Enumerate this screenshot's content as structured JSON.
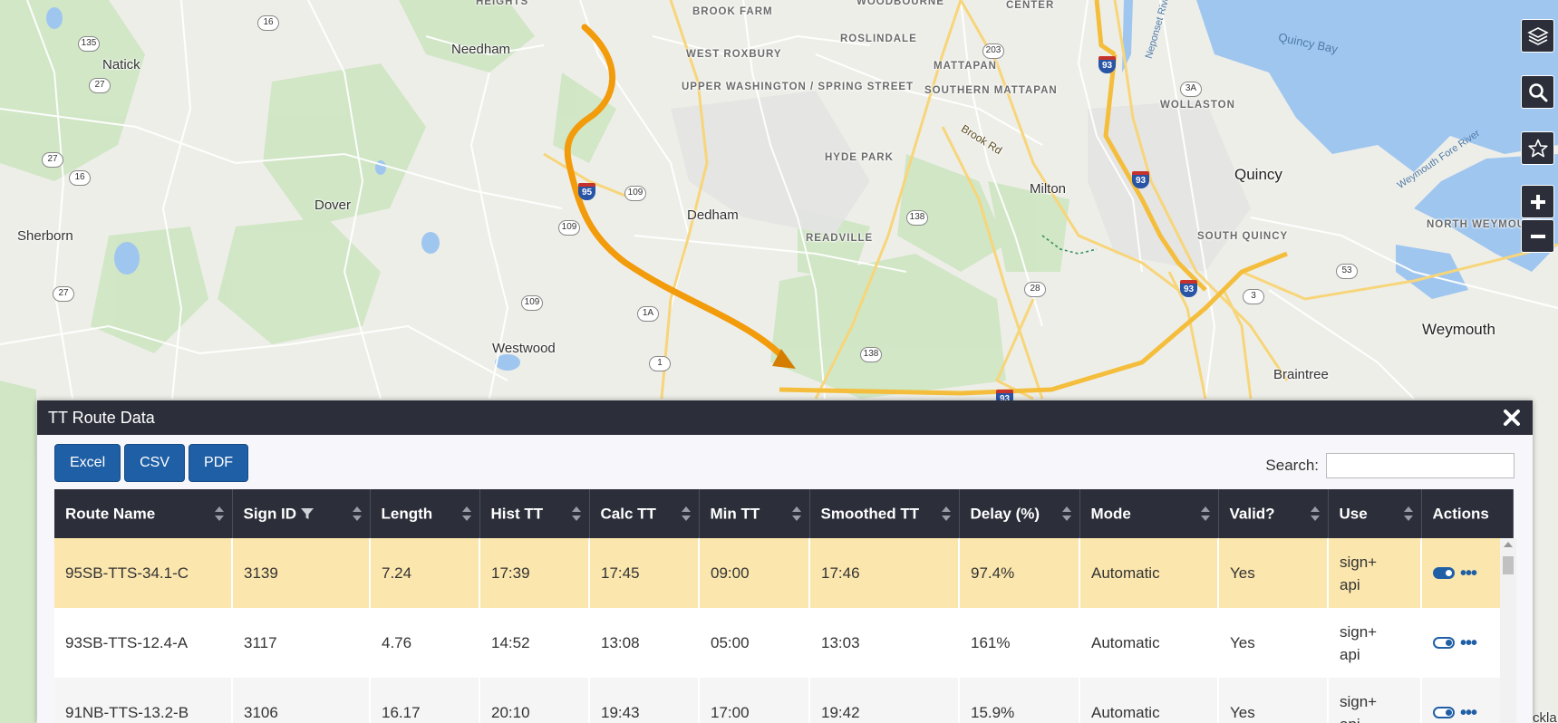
{
  "map": {
    "places": {
      "heights": "HEIGHTS",
      "brook_farm": "BROOK FARM",
      "woodbourne": "WOODBOURNE",
      "center": "CENTER",
      "needham": "Needham",
      "west_roxbury": "WEST ROXBURY",
      "roslindale": "ROSLINDALE",
      "mattapan": "MATTAPAN",
      "natick": "Natick",
      "upper_washington": "UPPER WASHINGTON / SPRING STREET",
      "southern_mattapan": "SOUTHERN MATTAPAN",
      "wollaston": "WOLLASTON",
      "quincy_bay": "Quincy Bay",
      "brook_rd": "Brook Rd",
      "hyde_park": "HYDE PARK",
      "milton": "Milton",
      "quincy": "Quincy",
      "dover": "Dover",
      "dedham": "Dedham",
      "sherborn": "Sherborn",
      "readville": "READVILLE",
      "south_quincy": "SOUTH QUINCY",
      "north_weymouth": "NORTH WEYMOUTH",
      "weymouth_fore_river": "Weymouth Fore River",
      "neponset_river": "Neponset River",
      "westwood": "Westwood",
      "weymouth": "Weymouth",
      "braintree": "Braintree"
    },
    "shields": {
      "r135": "135",
      "r16a": "16",
      "r27a": "27",
      "r27b": "27",
      "r16b": "16",
      "r27c": "27",
      "r203": "203",
      "r3a": "3A",
      "r109a": "109",
      "r109b": "109",
      "r109c": "109",
      "r138a": "138",
      "r138b": "138",
      "r1a": "1A",
      "r1": "1",
      "r28": "28",
      "r3": "3",
      "r53": "53"
    },
    "interstates": {
      "i95": "95",
      "i93a": "93",
      "i93b": "93",
      "i93c": "93",
      "i93d": "93"
    },
    "corner_text": "ckla",
    "controls": [
      "layers-icon",
      "search-icon",
      "star-icon",
      "zoom-in-icon",
      "zoom-out-icon"
    ]
  },
  "panel": {
    "title": "TT Route Data",
    "export_buttons": {
      "excel": "Excel",
      "csv": "CSV",
      "pdf": "PDF"
    },
    "search_label": "Search:",
    "search_value": "",
    "columns": [
      "Route Name",
      "Sign ID",
      "Length",
      "Hist TT",
      "Calc TT",
      "Min TT",
      "Smoothed TT",
      "Delay (%)",
      "Mode",
      "Valid?",
      "Use",
      "Actions"
    ],
    "rows": [
      {
        "route": "95SB-TTS-34.1-C",
        "sign_id": "3139",
        "length": "7.24",
        "hist_tt": "17:39",
        "calc_tt": "17:45",
        "min_tt": "09:00",
        "smoothed_tt": "17:46",
        "delay": "97.4%",
        "mode": "Automatic",
        "valid": "Yes",
        "use1": "sign+",
        "use2": "api",
        "enabled": true
      },
      {
        "route": "93SB-TTS-12.4-A",
        "sign_id": "3117",
        "length": "4.76",
        "hist_tt": "14:52",
        "calc_tt": "13:08",
        "min_tt": "05:00",
        "smoothed_tt": "13:03",
        "delay": "161%",
        "mode": "Automatic",
        "valid": "Yes",
        "use1": "sign+",
        "use2": "api",
        "enabled": false
      },
      {
        "route": "91NB-TTS-13.2-B",
        "sign_id": "3106",
        "length": "16.17",
        "hist_tt": "20:10",
        "calc_tt": "19:43",
        "min_tt": "17:00",
        "smoothed_tt": "19:42",
        "delay": "15.9%",
        "mode": "Automatic",
        "valid": "Yes",
        "use1": "sign+",
        "use2": "api",
        "enabled": false
      }
    ]
  },
  "colors": {
    "accent": "#1f5fa6",
    "header": "#2c2f3a",
    "selected_row": "#fbe6ad",
    "route_line": "#f29b0b"
  }
}
